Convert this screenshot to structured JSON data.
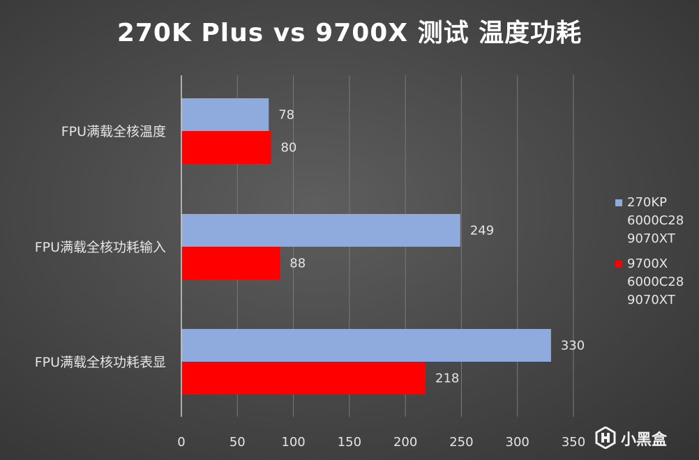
{
  "chart_data": {
    "type": "bar",
    "orientation": "horizontal",
    "title": "270K Plus vs 9700X 测试 温度功耗",
    "categories": [
      "FPU满载全核温度",
      "FPU满载全核功耗输入",
      "FPU满载全核功耗表显"
    ],
    "series": [
      {
        "name": "270KP\n6000C28\n9070XT",
        "color": "#8faadc",
        "values": [
          78,
          249,
          330
        ]
      },
      {
        "name": "9700X\n6000C28\n9070XT",
        "color": "#ff0000",
        "values": [
          80,
          88,
          218
        ]
      }
    ],
    "xlim": [
      0,
      350
    ],
    "xticks": [
      0,
      50,
      100,
      150,
      200,
      250,
      300,
      350
    ],
    "grid": true,
    "legend_position": "right"
  },
  "watermark": {
    "text": "小黑盒",
    "icon": "heybox-logo-icon"
  }
}
